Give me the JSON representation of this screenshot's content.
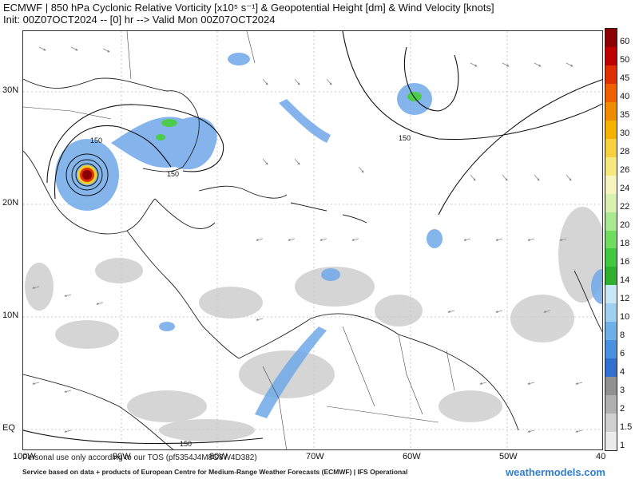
{
  "header": {
    "line1": "ECMWF | 850 hPa Cyclonic Relative Vorticity [x10⁵ s⁻¹] & Geopotential Height [dm] & Wind Velocity [knots]",
    "line2": "Init: 00Z07OCT2024 -- [0] hr --> Valid Mon 00Z07OCT2024"
  },
  "map": {
    "lat_labels": [
      "30N",
      "20N",
      "10N",
      "EQ"
    ],
    "lon_labels": [
      "100W",
      "90W",
      "80W",
      "70W",
      "60W",
      "50W",
      "40"
    ],
    "contour_labels": [
      "150",
      "150",
      "150",
      "150"
    ]
  },
  "legend": {
    "labels": [
      "60",
      "50",
      "45",
      "40",
      "35",
      "30",
      "28",
      "26",
      "24",
      "22",
      "20",
      "18",
      "16",
      "14",
      "12",
      "10",
      "8",
      "6",
      "4",
      "3",
      "2",
      "1.5",
      "1"
    ],
    "colors": [
      "#8b0000",
      "#c00000",
      "#e03000",
      "#f06000",
      "#f08c00",
      "#f5b000",
      "#f7d040",
      "#f8e880",
      "#f8f4c0",
      "#d8f0b0",
      "#a8e890",
      "#70dc60",
      "#40c840",
      "#30b030",
      "#c8e8f8",
      "#a0d0f0",
      "#70b0e8",
      "#4a90e0",
      "#3070d0",
      "#909090",
      "#b0b0b0",
      "#d0d0d0",
      "#ececec"
    ]
  },
  "footer": {
    "tos": "Personal use only according to our TOS (pf5354J4M8G8W4D382)",
    "source": "Service based on data + products of European Centre for Medium-Range Weather Forecasts (ECMWF) | IFS Operational",
    "brand": "weathermodels.com"
  }
}
